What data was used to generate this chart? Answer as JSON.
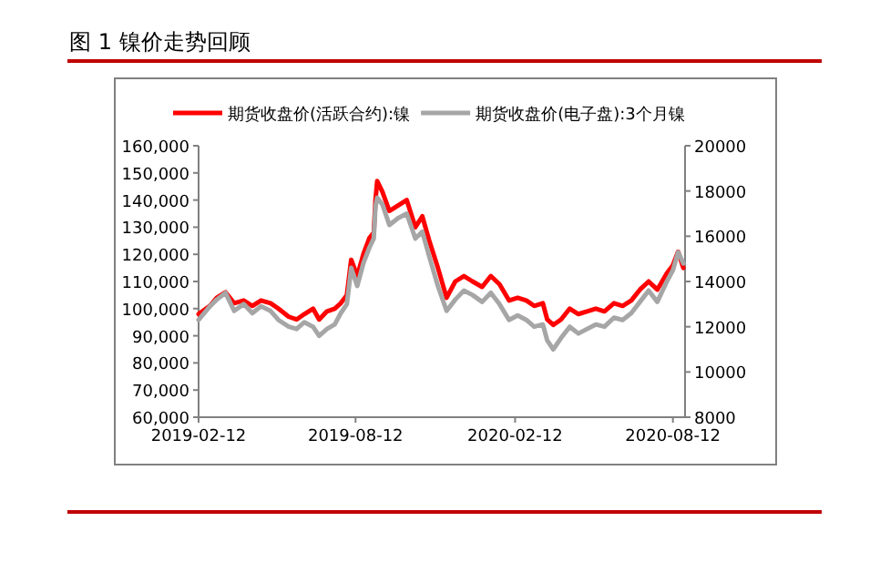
{
  "chart_data": {
    "type": "line",
    "title": "图 1 镍价走势回顾",
    "legend": "top",
    "grid": false,
    "line_style": "solid",
    "marker": "none",
    "xlim": [
      "2019-02-12",
      "2020-08-26"
    ],
    "xticks": [
      "2019-02-12",
      "2019-08-12",
      "2020-02-12",
      "2020-08-12"
    ],
    "ylim": [
      60000,
      160000
    ],
    "yticks": [
      {
        "value": 60000,
        "label": "60,000"
      },
      {
        "value": 70000,
        "label": "70,000"
      },
      {
        "value": 80000,
        "label": "80,000"
      },
      {
        "value": 90000,
        "label": "90,000"
      },
      {
        "value": 100000,
        "label": "100,000"
      },
      {
        "value": 110000,
        "label": "110,000"
      },
      {
        "value": 120000,
        "label": "120,000"
      },
      {
        "value": 130000,
        "label": "130,000"
      },
      {
        "value": 140000,
        "label": "140,000"
      },
      {
        "value": 150000,
        "label": "150,000"
      },
      {
        "value": 160000,
        "label": "160,000"
      }
    ],
    "y2lim": [
      8000,
      20000
    ],
    "y2ticks": [
      8000,
      10000,
      12000,
      14000,
      16000,
      18000,
      20000
    ],
    "x": [
      "2019-02-12",
      "2019-02-25",
      "2019-03-05",
      "2019-03-15",
      "2019-03-25",
      "2019-04-05",
      "2019-04-15",
      "2019-04-25",
      "2019-05-06",
      "2019-05-15",
      "2019-05-27",
      "2019-06-05",
      "2019-06-14",
      "2019-06-24",
      "2019-07-01",
      "2019-07-10",
      "2019-07-19",
      "2019-07-26",
      "2019-08-02",
      "2019-08-07",
      "2019-08-14",
      "2019-08-21",
      "2019-08-28",
      "2019-09-02",
      "2019-09-04",
      "2019-09-06",
      "2019-09-12",
      "2019-09-20",
      "2019-09-30",
      "2019-10-10",
      "2019-10-20",
      "2019-10-28",
      "2019-11-05",
      "2019-11-15",
      "2019-11-25",
      "2019-12-05",
      "2019-12-15",
      "2019-12-25",
      "2020-01-05",
      "2020-01-15",
      "2020-01-25",
      "2020-02-05",
      "2020-02-15",
      "2020-02-25",
      "2020-03-05",
      "2020-03-15",
      "2020-03-20",
      "2020-03-27",
      "2020-04-05",
      "2020-04-15",
      "2020-04-25",
      "2020-05-05",
      "2020-05-15",
      "2020-05-25",
      "2020-06-05",
      "2020-06-15",
      "2020-06-25",
      "2020-07-05",
      "2020-07-15",
      "2020-07-25",
      "2020-08-05",
      "2020-08-12",
      "2020-08-18",
      "2020-08-24"
    ],
    "series": [
      {
        "name": "期货收盘价(活跃合约):镍",
        "color": "#ff0000",
        "values": [
          98000,
          101000,
          104000,
          106000,
          102000,
          103000,
          101000,
          103000,
          102000,
          100000,
          97000,
          96000,
          98000,
          100000,
          96000,
          99000,
          100000,
          102000,
          105000,
          118000,
          112000,
          120000,
          126000,
          128000,
          140000,
          147000,
          143000,
          136000,
          138000,
          140000,
          130000,
          134000,
          125000,
          115000,
          104000,
          110000,
          112000,
          110000,
          108000,
          112000,
          109000,
          103000,
          104000,
          103000,
          101000,
          102000,
          96000,
          94000,
          96000,
          100000,
          98000,
          99000,
          100000,
          99000,
          102000,
          101000,
          103000,
          107000,
          110000,
          107000,
          113000,
          116000,
          121000,
          115000
        ]
      },
      {
        "name": "期货收盘价(电子盘):3个月镍",
        "color": "#a6a6a6",
        "axis": "y2",
        "values": [
          12300,
          12900,
          13200,
          13500,
          12700,
          13000,
          12600,
          12900,
          12700,
          12300,
          12000,
          11900,
          12200,
          12000,
          11600,
          11900,
          12100,
          12600,
          13000,
          14600,
          13800,
          14800,
          15500,
          15900,
          17300,
          17700,
          17400,
          16500,
          16800,
          17000,
          15900,
          16200,
          15100,
          13800,
          12700,
          13200,
          13600,
          13400,
          13100,
          13500,
          13000,
          12300,
          12500,
          12300,
          12000,
          12100,
          11400,
          11000,
          11500,
          12000,
          11700,
          11900,
          12100,
          12000,
          12400,
          12300,
          12600,
          13100,
          13600,
          13100,
          14000,
          14500,
          15300,
          14800
        ]
      }
    ]
  }
}
